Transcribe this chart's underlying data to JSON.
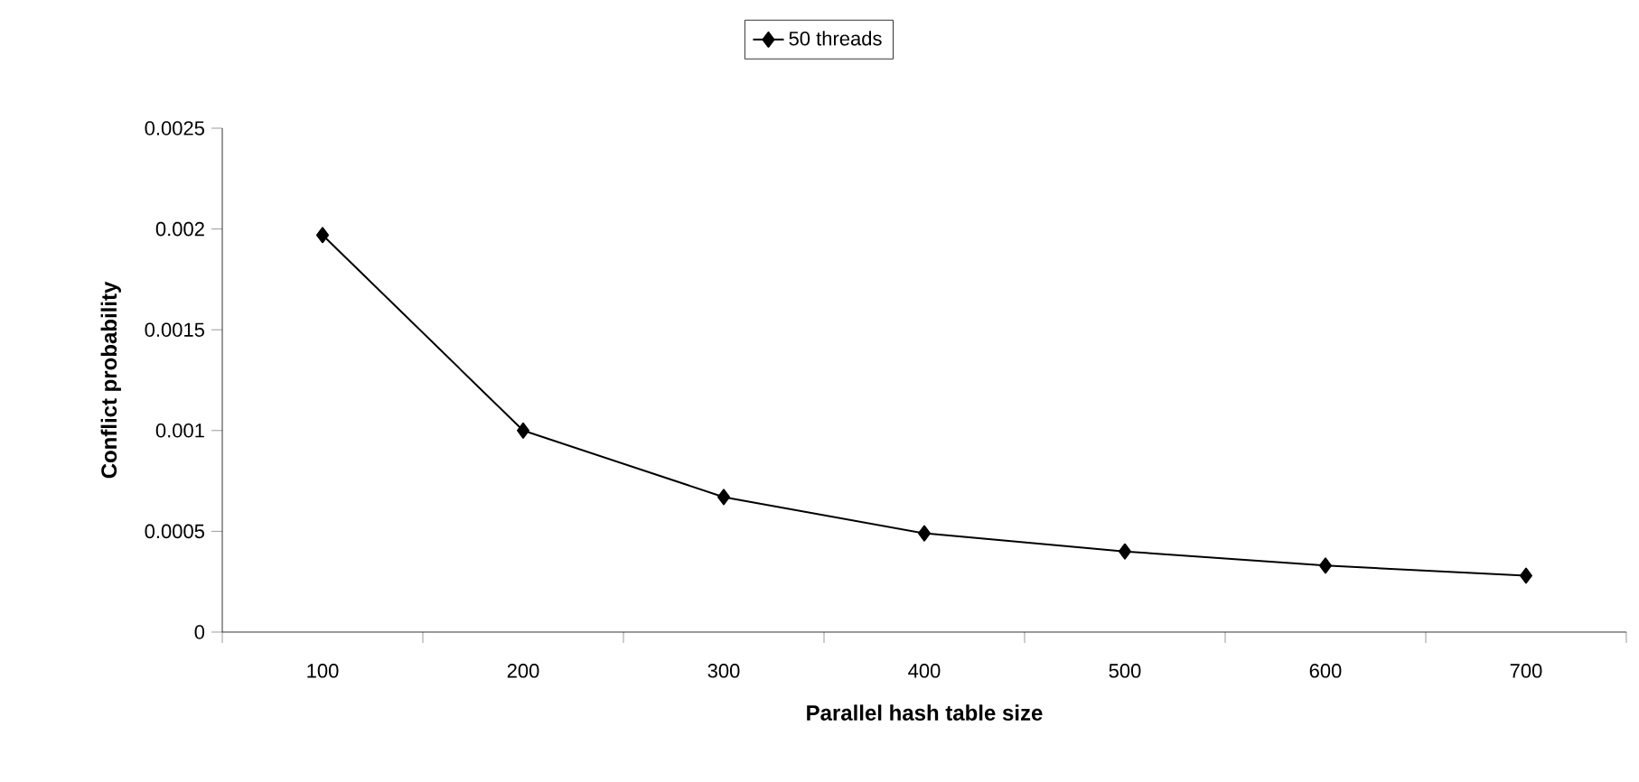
{
  "chart_data": {
    "type": "line",
    "xlabel": "Parallel hash table size",
    "ylabel": "Conflict probability",
    "categories": [
      "100",
      "200",
      "300",
      "400",
      "500",
      "600",
      "700"
    ],
    "series": [
      {
        "name": "50 threads",
        "color": "#000000",
        "values": [
          0.00197,
          0.001,
          0.00067,
          0.00049,
          0.0004,
          0.00033,
          0.00028
        ]
      }
    ],
    "ylim": [
      0,
      0.0025
    ],
    "yticks": [
      0,
      0.0005,
      0.001,
      0.0015,
      0.002,
      0.0025
    ],
    "legend": "top",
    "marker": "diamond",
    "line_style": "solid",
    "grid": false
  }
}
